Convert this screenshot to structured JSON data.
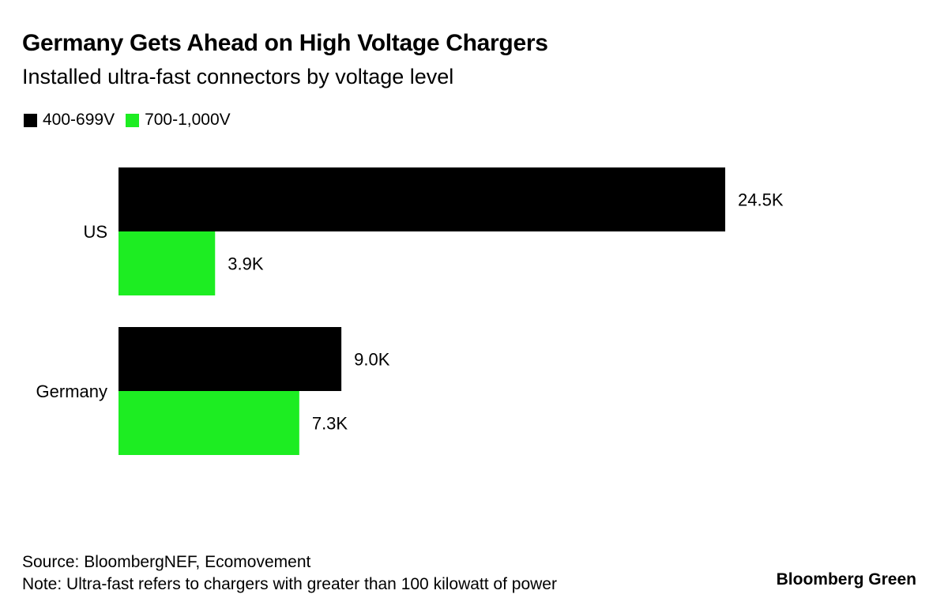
{
  "header": {
    "title": "Germany Gets Ahead on High Voltage Chargers",
    "subtitle": "Installed ultra-fast connectors by voltage level"
  },
  "legend": [
    {
      "label": "400-699V",
      "color": "#000000"
    },
    {
      "label": "700-1,000V",
      "color": "#1ded22"
    }
  ],
  "footer": {
    "source": "Source: BloombergNEF, Ecomovement",
    "note": "Note: Ultra-fast refers to chargers with greater than 100 kilowatt of power",
    "brand": "Bloomberg Green"
  },
  "chart_data": {
    "type": "bar",
    "orientation": "horizontal",
    "categories": [
      "US",
      "Germany"
    ],
    "series": [
      {
        "name": "400-699V",
        "color": "#000000",
        "values": [
          24.5,
          9.0
        ],
        "labels": [
          "24.5K",
          "9.0K"
        ]
      },
      {
        "name": "700-1,000V",
        "color": "#1ded22",
        "values": [
          3.9,
          7.3
        ],
        "labels": [
          "3.9K",
          "7.3K"
        ]
      }
    ],
    "unit": "thousand connectors",
    "xlim": [
      0,
      24.5
    ],
    "grid": false,
    "legend_position": "top-left"
  }
}
